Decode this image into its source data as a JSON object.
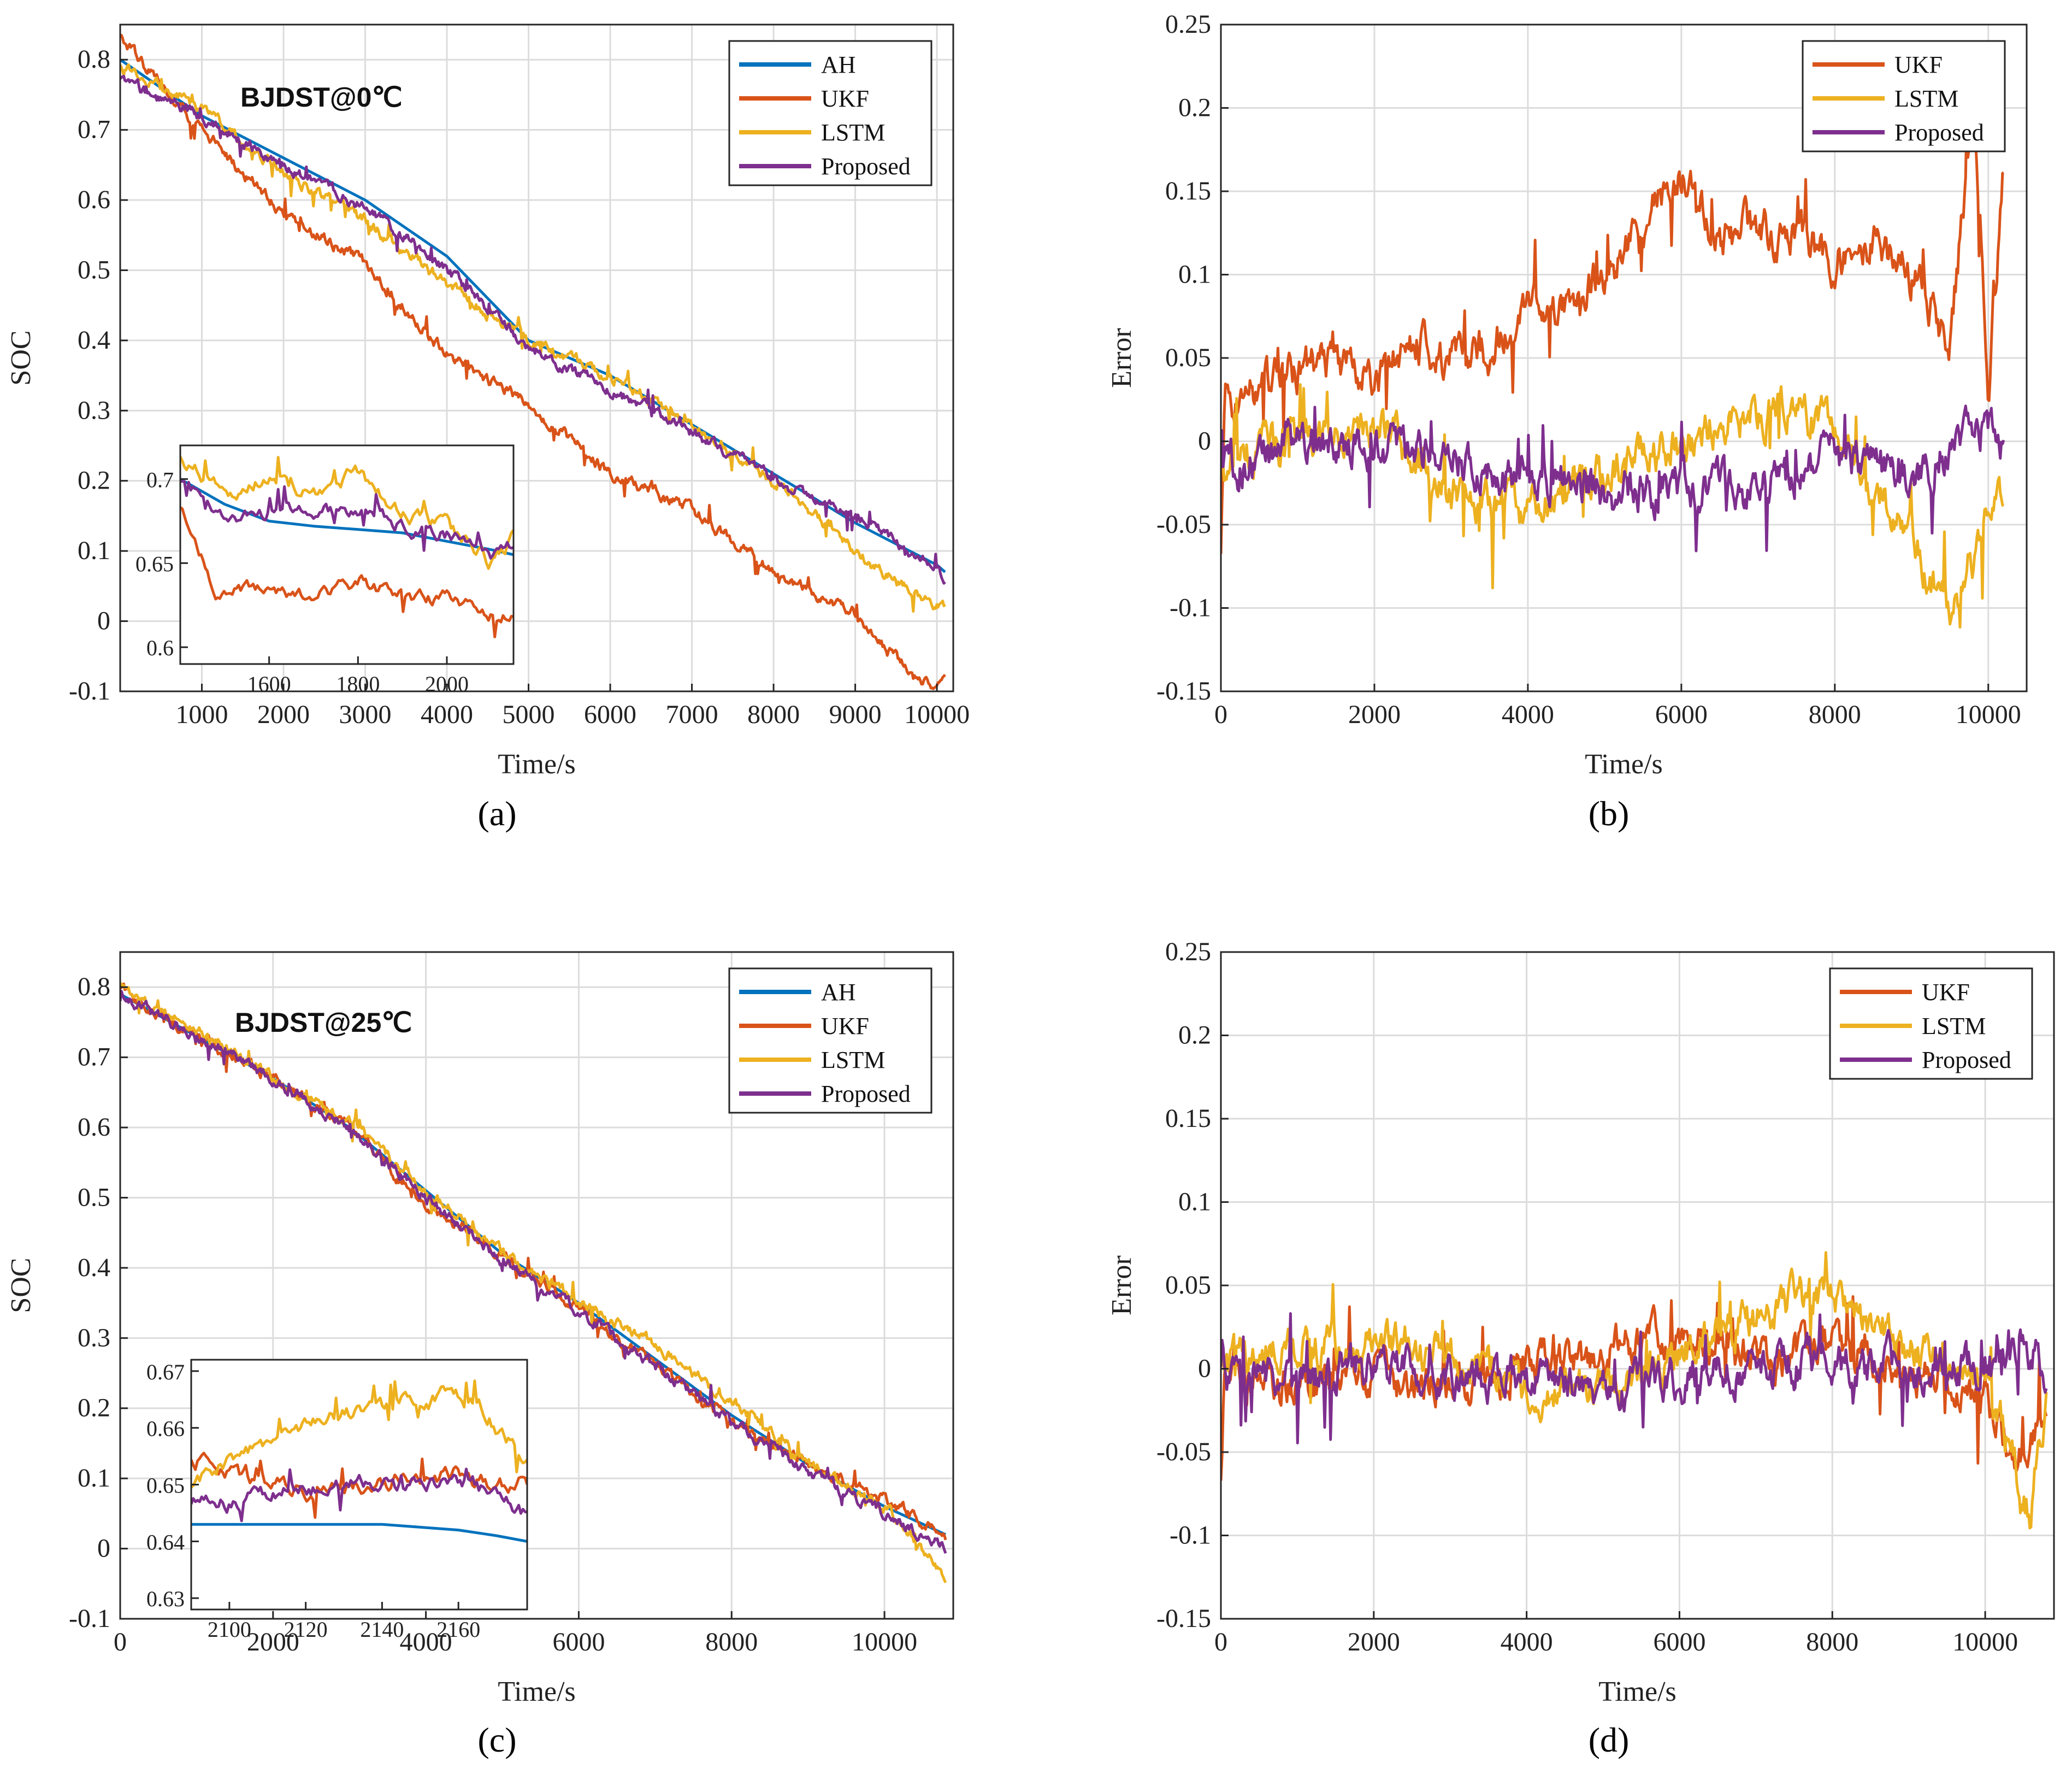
{
  "colors": {
    "AH": "#0072BD",
    "UKF": "#D95319",
    "LSTM": "#EDB120",
    "Proposed": "#7E2F8E"
  },
  "chart_data": [
    {
      "id": "a",
      "type": "line",
      "caption": "(a)",
      "annotation": "BJDST@0℃",
      "xlabel": "Time/s",
      "ylabel": "SOC",
      "xlim": [
        0,
        10200
      ],
      "ylim": [
        -0.1,
        0.85
      ],
      "xticks": [
        1000,
        2000,
        3000,
        4000,
        5000,
        6000,
        7000,
        8000,
        9000,
        10000
      ],
      "yticks": [
        -0.1,
        0,
        0.1,
        0.2,
        0.3,
        0.4,
        0.5,
        0.6,
        0.7,
        0.8
      ],
      "legend": [
        "AH",
        "UKF",
        "LSTM",
        "Proposed"
      ],
      "legend_position": "top-right",
      "series": [
        {
          "name": "AH",
          "x": [
            0,
            1000,
            2000,
            3000,
            4000,
            5000,
            6000,
            7000,
            8000,
            9000,
            10000,
            10100
          ],
          "y": [
            0.8,
            0.72,
            0.66,
            0.6,
            0.52,
            0.4,
            0.35,
            0.28,
            0.21,
            0.14,
            0.08,
            0.07
          ]
        },
        {
          "name": "UKF",
          "x": [
            0,
            1000,
            2000,
            3000,
            4000,
            5000,
            6000,
            7000,
            8000,
            9000,
            9800,
            10100
          ],
          "y": [
            0.83,
            0.7,
            0.58,
            0.51,
            0.38,
            0.31,
            0.21,
            0.16,
            0.07,
            0.01,
            -0.09,
            -0.09
          ]
        },
        {
          "name": "LSTM",
          "x": [
            0,
            1000,
            2000,
            3000,
            4000,
            5000,
            6000,
            7000,
            8000,
            9000,
            9800,
            10100
          ],
          "y": [
            0.79,
            0.73,
            0.64,
            0.57,
            0.48,
            0.4,
            0.35,
            0.28,
            0.2,
            0.1,
            0.03,
            0.02
          ]
        },
        {
          "name": "Proposed",
          "x": [
            0,
            1000,
            2000,
            3000,
            4000,
            5000,
            6000,
            7000,
            8000,
            9000,
            9800,
            10100
          ],
          "y": [
            0.77,
            0.72,
            0.65,
            0.59,
            0.5,
            0.39,
            0.33,
            0.27,
            0.2,
            0.15,
            0.09,
            0.06
          ]
        }
      ],
      "inset": {
        "xlim": [
          1400,
          2150
        ],
        "ylim": [
          0.59,
          0.72
        ],
        "xticks": [
          1600,
          1800,
          2000
        ],
        "yticks": [
          0.6,
          0.65,
          0.7
        ],
        "series": [
          {
            "name": "AH",
            "x": [
              1400,
              1500,
              1600,
              1700,
              1800,
              1900,
              2000,
              2100,
              2150
            ],
            "y": [
              0.7,
              0.685,
              0.675,
              0.672,
              0.67,
              0.668,
              0.663,
              0.658,
              0.655
            ]
          },
          {
            "name": "UKF",
            "x": [
              1400,
              1480,
              1600,
              1700,
              1800,
              1900,
              2000,
              2100,
              2150
            ],
            "y": [
              0.685,
              0.63,
              0.635,
              0.632,
              0.64,
              0.63,
              0.628,
              0.618,
              0.617
            ]
          },
          {
            "name": "LSTM",
            "x": [
              1400,
              1500,
              1600,
              1700,
              1800,
              1850,
              1900,
              2000,
              2100,
              2150
            ],
            "y": [
              0.715,
              0.69,
              0.7,
              0.69,
              0.705,
              0.69,
              0.68,
              0.672,
              0.65,
              0.665
            ]
          },
          {
            "name": "Proposed",
            "x": [
              1400,
              1500,
              1600,
              1700,
              1800,
              1900,
              2000,
              2100,
              2150
            ],
            "y": [
              0.7,
              0.675,
              0.68,
              0.68,
              0.682,
              0.672,
              0.668,
              0.655,
              0.66
            ]
          }
        ]
      }
    },
    {
      "id": "b",
      "type": "line",
      "caption": "(b)",
      "xlabel": "Time/s",
      "ylabel": "Error",
      "xlim": [
        0,
        10500
      ],
      "ylim": [
        -0.15,
        0.25
      ],
      "xticks": [
        0,
        2000,
        4000,
        6000,
        8000,
        10000
      ],
      "yticks": [
        -0.15,
        -0.1,
        -0.05,
        0,
        0.05,
        0.1,
        0.15,
        0.2,
        0.25
      ],
      "legend": [
        "UKF",
        "LSTM",
        "Proposed"
      ],
      "legend_position": "top-right",
      "series": [
        {
          "name": "UKF",
          "x": [
            0,
            50,
            500,
            1000,
            1500,
            2000,
            2500,
            3000,
            3500,
            4000,
            4500,
            5000,
            5500,
            6000,
            6500,
            7000,
            7500,
            8000,
            8500,
            9000,
            9500,
            9800,
            10000,
            10200
          ],
          "y": [
            -0.07,
            0.02,
            0.035,
            0.04,
            0.05,
            0.035,
            0.06,
            0.05,
            0.055,
            0.08,
            0.08,
            0.1,
            0.13,
            0.16,
            0.12,
            0.13,
            0.12,
            0.11,
            0.12,
            0.1,
            0.06,
            0.2,
            0.04,
            0.16
          ]
        },
        {
          "name": "LSTM",
          "x": [
            0,
            1000,
            2000,
            3000,
            4000,
            5000,
            6000,
            7000,
            8000,
            9000,
            9500,
            10000,
            10200
          ],
          "y": [
            -0.01,
            0.0,
            0.01,
            -0.03,
            -0.04,
            -0.02,
            0.0,
            0.02,
            0.01,
            -0.06,
            -0.1,
            -0.05,
            -0.03
          ]
        },
        {
          "name": "Proposed",
          "x": [
            0,
            1000,
            2000,
            3000,
            4000,
            5000,
            6000,
            7000,
            8000,
            9000,
            10000,
            10200
          ],
          "y": [
            -0.02,
            0.0,
            0.0,
            -0.01,
            -0.02,
            -0.03,
            -0.03,
            -0.03,
            -0.01,
            -0.02,
            0.01,
            0.0
          ]
        }
      ]
    },
    {
      "id": "c",
      "type": "line",
      "caption": "(c)",
      "annotation": "BJDST@25℃",
      "xlabel": "Time/s",
      "ylabel": "SOC",
      "xlim": [
        0,
        10900
      ],
      "ylim": [
        -0.1,
        0.85
      ],
      "xticks": [
        0,
        2000,
        4000,
        6000,
        8000,
        10000
      ],
      "yticks": [
        -0.1,
        0,
        0.1,
        0.2,
        0.3,
        0.4,
        0.5,
        0.6,
        0.7,
        0.8
      ],
      "legend": [
        "AH",
        "UKF",
        "LSTM",
        "Proposed"
      ],
      "legend_position": "top-right",
      "series": [
        {
          "name": "AH",
          "x": [
            0,
            1000,
            2000,
            3000,
            4000,
            5000,
            6000,
            7000,
            8000,
            9000,
            10000,
            10800
          ],
          "y": [
            0.79,
            0.73,
            0.67,
            0.6,
            0.51,
            0.42,
            0.35,
            0.27,
            0.19,
            0.12,
            0.06,
            0.02
          ]
        },
        {
          "name": "UKF",
          "x": [
            0,
            1000,
            2000,
            3000,
            4000,
            5000,
            6000,
            7000,
            8000,
            9000,
            10000,
            10800
          ],
          "y": [
            0.8,
            0.73,
            0.67,
            0.6,
            0.49,
            0.42,
            0.34,
            0.26,
            0.18,
            0.12,
            0.07,
            0.02
          ]
        },
        {
          "name": "LSTM",
          "x": [
            0,
            1000,
            2000,
            3000,
            4000,
            5000,
            6000,
            7000,
            8000,
            9000,
            10000,
            10800
          ],
          "y": [
            0.8,
            0.74,
            0.67,
            0.61,
            0.51,
            0.42,
            0.35,
            0.29,
            0.21,
            0.12,
            0.06,
            -0.04
          ]
        },
        {
          "name": "Proposed",
          "x": [
            0,
            1000,
            2000,
            3000,
            4000,
            5000,
            6000,
            7000,
            8000,
            9000,
            10000,
            10800
          ],
          "y": [
            0.79,
            0.73,
            0.67,
            0.6,
            0.5,
            0.41,
            0.34,
            0.26,
            0.18,
            0.11,
            0.05,
            0.0
          ]
        }
      ],
      "inset": {
        "xlim": [
          2090,
          2178
        ],
        "ylim": [
          0.628,
          0.672
        ],
        "xticks": [
          2100,
          2120,
          2140,
          2160
        ],
        "yticks": [
          0.63,
          0.64,
          0.65,
          0.66,
          0.67
        ],
        "series": [
          {
            "name": "AH",
            "x": [
              2090,
              2100,
              2120,
              2140,
              2160,
              2170,
              2178
            ],
            "y": [
              0.643,
              0.643,
              0.643,
              0.643,
              0.642,
              0.641,
              0.64
            ]
          },
          {
            "name": "UKF",
            "x": [
              2090,
              2100,
              2110,
              2120,
              2130,
              2140,
              2150,
              2160,
              2170,
              2178
            ],
            "y": [
              0.655,
              0.652,
              0.65,
              0.649,
              0.65,
              0.65,
              0.651,
              0.652,
              0.65,
              0.65
            ]
          },
          {
            "name": "LSTM",
            "x": [
              2090,
              2100,
              2120,
              2140,
              2155,
              2165,
              2178
            ],
            "y": [
              0.65,
              0.655,
              0.66,
              0.664,
              0.666,
              0.664,
              0.654
            ]
          },
          {
            "name": "Proposed",
            "x": [
              2090,
              2100,
              2110,
              2120,
              2130,
              2140,
              2150,
              2160,
              2170,
              2178
            ],
            "y": [
              0.647,
              0.647,
              0.648,
              0.649,
              0.65,
              0.65,
              0.65,
              0.651,
              0.648,
              0.645
            ]
          }
        ]
      }
    },
    {
      "id": "d",
      "type": "line",
      "caption": "(d)",
      "xlabel": "Time/s",
      "ylabel": "Error",
      "xlim": [
        0,
        10900
      ],
      "ylim": [
        -0.15,
        0.25
      ],
      "xticks": [
        0,
        2000,
        4000,
        6000,
        8000,
        10000
      ],
      "yticks": [
        -0.15,
        -0.1,
        -0.05,
        0,
        0.05,
        0.1,
        0.15,
        0.2,
        0.25
      ],
      "legend": [
        "UKF",
        "LSTM",
        "Proposed"
      ],
      "legend_position": "top-right",
      "series": [
        {
          "name": "UKF",
          "x": [
            0,
            50,
            1000,
            2000,
            3000,
            4000,
            5000,
            6000,
            7000,
            8000,
            9000,
            10000,
            10400,
            10800
          ],
          "y": [
            -0.07,
            0.0,
            -0.01,
            -0.005,
            -0.01,
            0.0,
            0.01,
            0.02,
            0.005,
            0.01,
            0.0,
            -0.02,
            -0.05,
            -0.02
          ]
        },
        {
          "name": "LSTM",
          "x": [
            0,
            1000,
            2000,
            3000,
            4000,
            5000,
            6000,
            7000,
            8000,
            8500,
            9000,
            10000,
            10600,
            10800
          ],
          "y": [
            0.0,
            0.01,
            0.02,
            0.01,
            -0.02,
            -0.01,
            0.01,
            0.03,
            0.05,
            0.03,
            0.01,
            0.0,
            -0.09,
            -0.01
          ]
        },
        {
          "name": "Proposed",
          "x": [
            0,
            50,
            1000,
            2000,
            3000,
            4000,
            5000,
            6000,
            7000,
            8000,
            9000,
            10000,
            10500,
            10800
          ],
          "y": [
            0.03,
            -0.01,
            -0.005,
            0.0,
            -0.005,
            -0.01,
            -0.01,
            -0.005,
            0.0,
            0.005,
            0.0,
            0.0,
            0.02,
            0.0
          ]
        }
      ]
    }
  ]
}
